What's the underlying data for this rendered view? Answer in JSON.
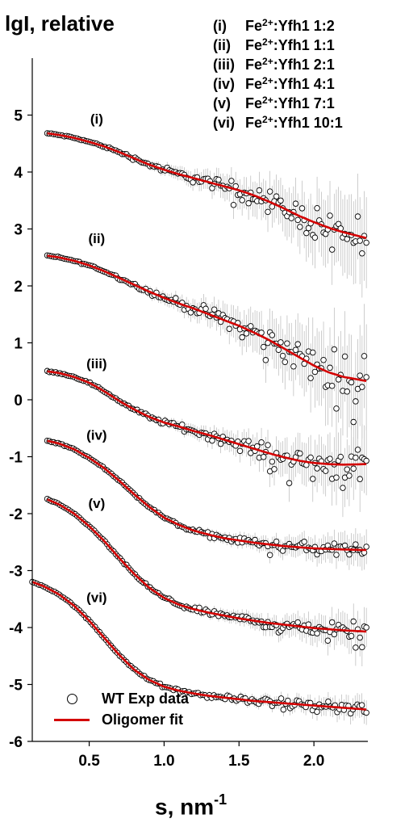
{
  "chart_data": {
    "type": "scatter",
    "title": "",
    "ylabel": "lgI, relative",
    "xlabel": "s, nm",
    "xlabel_exponent": "-1",
    "xlim": [
      0.12,
      2.36
    ],
    "ylim": [
      -6,
      6
    ],
    "xticks": [
      "0.5",
      "1.0",
      "1.5",
      "2.0"
    ],
    "xtick_values": [
      0.5,
      1.0,
      1.5,
      2.0
    ],
    "yticks": [
      "-6",
      "-5",
      "-4",
      "-3",
      "-2",
      "-1",
      "0",
      "1",
      "2",
      "3",
      "4",
      "5"
    ],
    "ytick_values": [
      -6,
      -5,
      -4,
      -3,
      -2,
      -1,
      0,
      1,
      2,
      3,
      4,
      5
    ],
    "key": [
      {
        "roman": "(i)",
        "text": "Fe",
        "sup": "2+",
        "rest": ":Yfh1 1:2"
      },
      {
        "roman": "(ii)",
        "text": "Fe",
        "sup": "2+",
        "rest": ":Yfh1 1:1"
      },
      {
        "roman": "(iii)",
        "text": "Fe",
        "sup": "2+",
        "rest": ":Yfh1 2:1"
      },
      {
        "roman": "(iv)",
        "text": "Fe",
        "sup": "2+",
        "rest": ":Yfh1 4:1"
      },
      {
        "roman": "(v)",
        "text": "Fe",
        "sup": "2+",
        "rest": ":Yfh1 7:1"
      },
      {
        "roman": "(vi)",
        "text": "Fe",
        "sup": "2+",
        "rest": ":Yfh1 10:1"
      }
    ],
    "legend": [
      {
        "label": "WT Exp data",
        "marker": "open-circle"
      },
      {
        "label": "Oligomer fit",
        "marker": "line"
      }
    ],
    "colors": {
      "fit": "#d40000",
      "data": "#000000",
      "error": "#b8b8b8"
    },
    "series": [
      {
        "label": "(i)",
        "label_at": [
          0.55,
          4.85
        ],
        "noise": 0.6,
        "x": [
          0.22,
          0.3,
          0.4,
          0.5,
          0.6,
          0.7,
          0.8,
          0.9,
          1.0,
          1.1,
          1.2,
          1.3,
          1.4,
          1.5,
          1.6,
          1.7,
          1.8,
          1.9,
          2.0,
          2.1,
          2.2,
          2.35
        ],
        "y": [
          4.68,
          4.65,
          4.6,
          4.53,
          4.45,
          4.35,
          4.24,
          4.13,
          4.04,
          3.96,
          3.89,
          3.82,
          3.75,
          3.68,
          3.59,
          3.48,
          3.36,
          3.23,
          3.12,
          3.02,
          2.94,
          2.84
        ]
      },
      {
        "label": "(ii)",
        "label_at": [
          0.55,
          2.75
        ],
        "noise": 0.7,
        "x": [
          0.22,
          0.3,
          0.4,
          0.5,
          0.6,
          0.7,
          0.8,
          0.9,
          1.0,
          1.1,
          1.2,
          1.3,
          1.4,
          1.5,
          1.6,
          1.7,
          1.8,
          1.9,
          2.0,
          2.1,
          2.2,
          2.35
        ],
        "y": [
          2.53,
          2.5,
          2.44,
          2.36,
          2.26,
          2.14,
          2.02,
          1.9,
          1.79,
          1.69,
          1.6,
          1.5,
          1.4,
          1.3,
          1.18,
          1.05,
          0.9,
          0.75,
          0.6,
          0.48,
          0.4,
          0.33
        ]
      },
      {
        "label": "(iii)",
        "label_at": [
          0.55,
          0.55
        ],
        "noise": 0.45,
        "x": [
          0.22,
          0.3,
          0.4,
          0.5,
          0.6,
          0.7,
          0.8,
          0.9,
          1.0,
          1.1,
          1.2,
          1.3,
          1.4,
          1.5,
          1.6,
          1.7,
          1.8,
          1.9,
          2.0,
          2.1,
          2.2,
          2.35
        ],
        "y": [
          0.5,
          0.47,
          0.4,
          0.3,
          0.15,
          -0.02,
          -0.17,
          -0.3,
          -0.4,
          -0.47,
          -0.55,
          -0.62,
          -0.7,
          -0.78,
          -0.86,
          -0.94,
          -1.01,
          -1.07,
          -1.11,
          -1.13,
          -1.14,
          -1.13
        ]
      },
      {
        "label": "(iv)",
        "label_at": [
          0.55,
          -0.7
        ],
        "noise": 0.22,
        "x": [
          0.22,
          0.3,
          0.4,
          0.5,
          0.6,
          0.7,
          0.8,
          0.9,
          1.0,
          1.1,
          1.2,
          1.3,
          1.4,
          1.5,
          1.6,
          1.7,
          1.8,
          1.9,
          2.0,
          2.1,
          2.2,
          2.35
        ],
        "y": [
          -0.72,
          -0.77,
          -0.87,
          -1.02,
          -1.2,
          -1.42,
          -1.66,
          -1.88,
          -2.07,
          -2.2,
          -2.3,
          -2.37,
          -2.43,
          -2.47,
          -2.51,
          -2.54,
          -2.57,
          -2.59,
          -2.61,
          -2.62,
          -2.63,
          -2.64
        ]
      },
      {
        "label": "(v)",
        "label_at": [
          0.55,
          -1.9
        ],
        "noise": 0.25,
        "x": [
          0.22,
          0.3,
          0.4,
          0.5,
          0.6,
          0.7,
          0.8,
          0.9,
          1.0,
          1.1,
          1.2,
          1.3,
          1.4,
          1.5,
          1.6,
          1.7,
          1.8,
          1.9,
          2.0,
          2.1,
          2.2,
          2.35
        ],
        "y": [
          -1.75,
          -1.84,
          -2.0,
          -2.22,
          -2.48,
          -2.78,
          -3.06,
          -3.3,
          -3.48,
          -3.6,
          -3.68,
          -3.74,
          -3.79,
          -3.84,
          -3.88,
          -3.92,
          -3.95,
          -3.98,
          -4.01,
          -4.03,
          -4.05,
          -4.07
        ]
      },
      {
        "label": "(vi)",
        "label_at": [
          0.55,
          -3.55
        ],
        "noise": 0.15,
        "x": [
          0.12,
          0.2,
          0.3,
          0.4,
          0.5,
          0.6,
          0.7,
          0.8,
          0.9,
          1.0,
          1.1,
          1.2,
          1.3,
          1.4,
          1.5,
          1.6,
          1.7,
          1.8,
          1.9,
          2.0,
          2.1,
          2.2,
          2.35
        ],
        "y": [
          -3.2,
          -3.28,
          -3.42,
          -3.62,
          -3.88,
          -4.18,
          -4.48,
          -4.74,
          -4.92,
          -5.04,
          -5.11,
          -5.16,
          -5.2,
          -5.23,
          -5.26,
          -5.29,
          -5.31,
          -5.33,
          -5.35,
          -5.37,
          -5.39,
          -5.41,
          -5.44
        ]
      }
    ]
  }
}
